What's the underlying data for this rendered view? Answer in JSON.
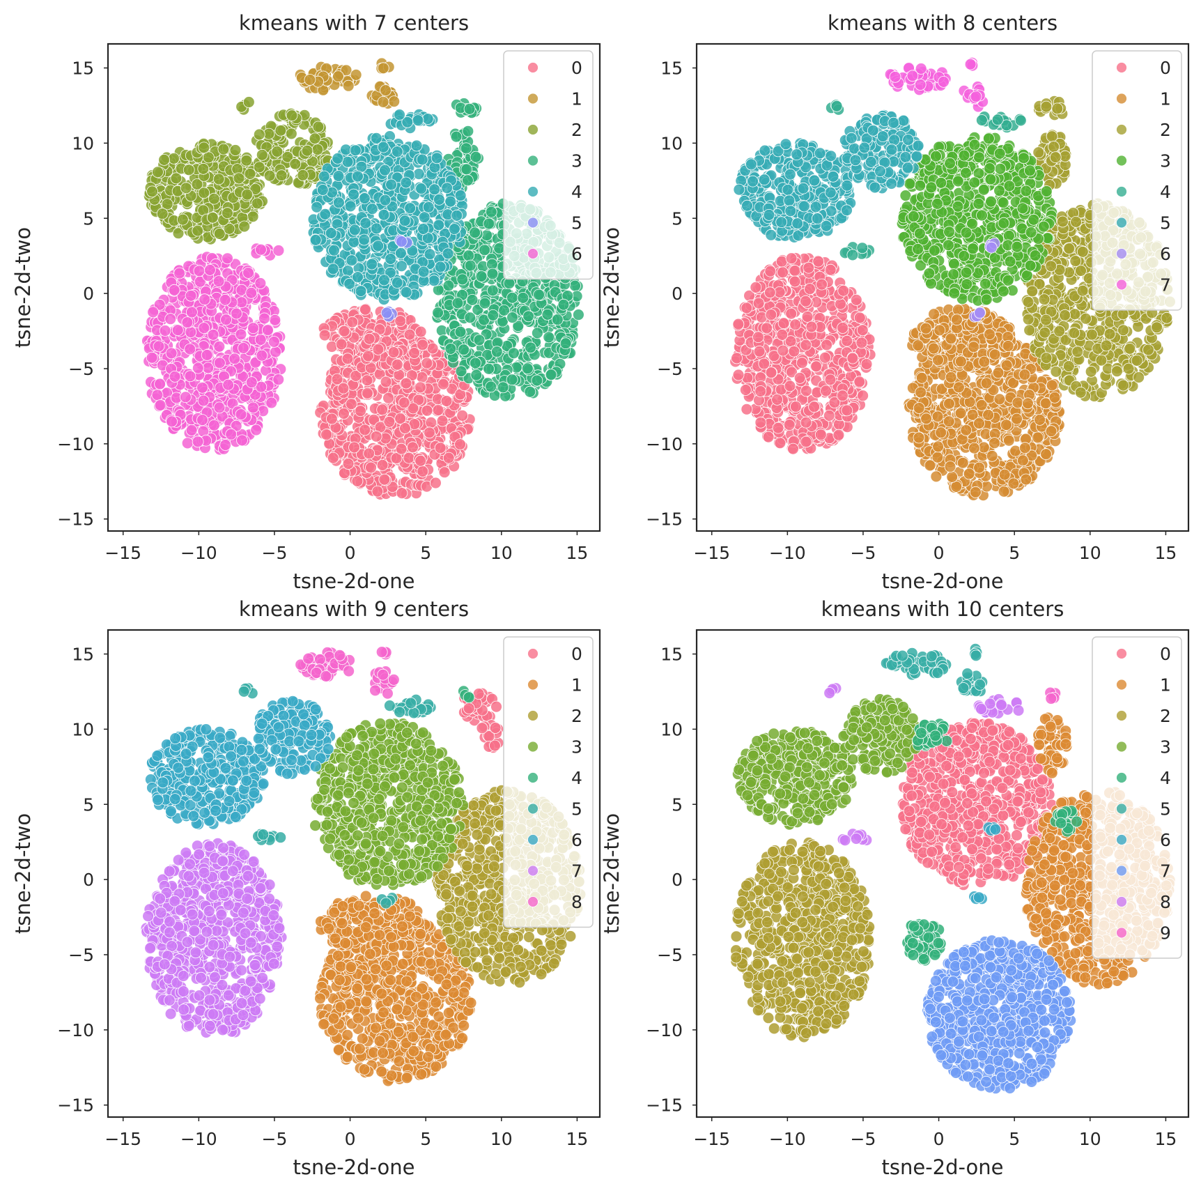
{
  "chart_data": [
    {
      "type": "scatter",
      "title": "kmeans with 7 centers",
      "xlabel": "tsne-2d-one",
      "ylabel": "tsne-2d-two",
      "xlim": [
        -16,
        16.5
      ],
      "ylim": [
        -15.8,
        16.6
      ],
      "xticks": [
        -15,
        -10,
        -5,
        0,
        5,
        10,
        15
      ],
      "yticks": [
        -15,
        -10,
        -5,
        0,
        5,
        10,
        15
      ],
      "xtick_labels": [
        "−15",
        "−10",
        "−5",
        "0",
        "5",
        "10",
        "15"
      ],
      "ytick_labels": [
        "−15",
        "−10",
        "−5",
        "0",
        "5",
        "10",
        "15"
      ],
      "legend": {
        "placement": "upper right",
        "entries": [
          "0",
          "1",
          "2",
          "3",
          "4",
          "5",
          "6"
        ]
      },
      "colors": [
        "#f77189",
        "#c39532",
        "#88a331",
        "#33b07a",
        "#35abb3",
        "#8b8ff5",
        "#f563d3"
      ],
      "series": [
        {
          "name": "0",
          "color": "#f77189",
          "cluster_regions": [
            {
              "cx": 3,
              "cy": -8,
              "rx": 5,
              "ry": 5.5
            },
            {
              "cx": 1.5,
              "cy": -3,
              "rx": 3.5,
              "ry": 2
            }
          ]
        },
        {
          "name": "1",
          "color": "#c39532",
          "cluster_regions": [
            {
              "cx": -1.5,
              "cy": 14.3,
              "rx": 2,
              "ry": 0.8
            },
            {
              "cx": 2.2,
              "cy": 13.1,
              "rx": 0.8,
              "ry": 0.8
            },
            {
              "cx": 2.3,
              "cy": 15.1,
              "rx": 0.3,
              "ry": 0.3
            }
          ]
        },
        {
          "name": "2",
          "color": "#88a331",
          "cluster_regions": [
            {
              "cx": -9.5,
              "cy": 6.8,
              "rx": 3.8,
              "ry": 3.2
            },
            {
              "cx": -3.8,
              "cy": 9.5,
              "rx": 2.5,
              "ry": 2.5
            },
            {
              "cx": -6.8,
              "cy": 12.5,
              "rx": 0.5,
              "ry": 0.3
            }
          ]
        },
        {
          "name": "3",
          "color": "#33b07a",
          "cluster_regions": [
            {
              "cx": 10.5,
              "cy": -0.5,
              "rx": 4.8,
              "ry": 6.5
            },
            {
              "cx": 7.5,
              "cy": 9,
              "rx": 1,
              "ry": 2
            },
            {
              "cx": 7.5,
              "cy": 12.3,
              "rx": 1,
              "ry": 0.5
            }
          ]
        },
        {
          "name": "4",
          "color": "#35abb3",
          "cluster_regions": [
            {
              "cx": 2.5,
              "cy": 5,
              "rx": 5,
              "ry": 5.5
            },
            {
              "cx": 4,
              "cy": 11.5,
              "rx": 1.5,
              "ry": 0.5
            }
          ]
        },
        {
          "name": "5",
          "color": "#8b8ff5",
          "cluster_regions": [
            {
              "cx": 2.5,
              "cy": -1.3,
              "rx": 0.4,
              "ry": 0.3
            },
            {
              "cx": 3.5,
              "cy": 3.3,
              "rx": 0.3,
              "ry": 0.3
            }
          ]
        },
        {
          "name": "6",
          "color": "#f563d3",
          "cluster_regions": [
            {
              "cx": -9,
              "cy": -4,
              "rx": 4.5,
              "ry": 6.5
            },
            {
              "cx": -5.5,
              "cy": 2.8,
              "rx": 1,
              "ry": 0.3
            }
          ]
        }
      ]
    },
    {
      "type": "scatter",
      "title": "kmeans with 8 centers",
      "xlabel": "tsne-2d-one",
      "ylabel": "tsne-2d-two",
      "xlim": [
        -16,
        16.5
      ],
      "ylim": [
        -15.8,
        16.6
      ],
      "xticks": [
        -15,
        -10,
        -5,
        0,
        5,
        10,
        15
      ],
      "yticks": [
        -15,
        -10,
        -5,
        0,
        5,
        10,
        15
      ],
      "xtick_labels": [
        "−15",
        "−10",
        "−5",
        "0",
        "5",
        "10",
        "15"
      ],
      "ytick_labels": [
        "−15",
        "−10",
        "−5",
        "0",
        "5",
        "10",
        "15"
      ],
      "legend": {
        "placement": "upper right",
        "entries": [
          "0",
          "1",
          "2",
          "3",
          "4",
          "5",
          "6",
          "7"
        ]
      },
      "colors": [
        "#f77189",
        "#d58c32",
        "#a4a031",
        "#50b131",
        "#34ae91",
        "#37abb5",
        "#a48cf4",
        "#f561dd"
      ],
      "series": [
        {
          "name": "0",
          "color": "#f77189",
          "cluster_regions": [
            {
              "cx": -9,
              "cy": -4,
              "rx": 4.5,
              "ry": 6.5
            }
          ]
        },
        {
          "name": "1",
          "color": "#d58c32",
          "cluster_regions": [
            {
              "cx": 3,
              "cy": -8,
              "rx": 5,
              "ry": 5.5
            },
            {
              "cx": 1.5,
              "cy": -3,
              "rx": 3.5,
              "ry": 2
            }
          ]
        },
        {
          "name": "2",
          "color": "#a4a031",
          "cluster_regions": [
            {
              "cx": 10.5,
              "cy": -0.5,
              "rx": 4.8,
              "ry": 6.5
            },
            {
              "cx": 7.5,
              "cy": 9,
              "rx": 1,
              "ry": 2
            },
            {
              "cx": 7.5,
              "cy": 12.3,
              "rx": 1,
              "ry": 0.5
            }
          ]
        },
        {
          "name": "3",
          "color": "#50b131",
          "cluster_regions": [
            {
              "cx": 2.5,
              "cy": 5,
              "rx": 5,
              "ry": 5.5
            }
          ]
        },
        {
          "name": "4",
          "color": "#34ae91",
          "cluster_regions": [
            {
              "cx": 4,
              "cy": 11.5,
              "rx": 1.5,
              "ry": 0.5
            },
            {
              "cx": -6.8,
              "cy": 12.5,
              "rx": 0.5,
              "ry": 0.3
            },
            {
              "cx": -5.5,
              "cy": 2.8,
              "rx": 1,
              "ry": 0.3
            }
          ]
        },
        {
          "name": "5",
          "color": "#37abb5",
          "cluster_regions": [
            {
              "cx": -9.5,
              "cy": 6.8,
              "rx": 3.8,
              "ry": 3.2
            },
            {
              "cx": -3.8,
              "cy": 9.5,
              "rx": 2.5,
              "ry": 2.5
            }
          ]
        },
        {
          "name": "6",
          "color": "#a48cf4",
          "cluster_regions": [
            {
              "cx": 2.5,
              "cy": -1.3,
              "rx": 0.4,
              "ry": 0.3
            },
            {
              "cx": 3.5,
              "cy": 3.3,
              "rx": 0.3,
              "ry": 0.3
            }
          ]
        },
        {
          "name": "7",
          "color": "#f561dd",
          "cluster_regions": [
            {
              "cx": -1.5,
              "cy": 14.3,
              "rx": 2,
              "ry": 0.8
            },
            {
              "cx": 2.2,
              "cy": 13.1,
              "rx": 0.8,
              "ry": 0.8
            },
            {
              "cx": 2.3,
              "cy": 15.1,
              "rx": 0.3,
              "ry": 0.3
            }
          ]
        }
      ]
    },
    {
      "type": "scatter",
      "title": "kmeans with 9 centers",
      "xlabel": "tsne-2d-one",
      "ylabel": "tsne-2d-two",
      "xlim": [
        -16,
        16.5
      ],
      "ylim": [
        -15.8,
        16.6
      ],
      "xticks": [
        -15,
        -10,
        -5,
        0,
        5,
        10,
        15
      ],
      "yticks": [
        -15,
        -10,
        -5,
        0,
        5,
        10,
        15
      ],
      "xtick_labels": [
        "−15",
        "−10",
        "−5",
        "0",
        "5",
        "10",
        "15"
      ],
      "ytick_labels": [
        "−15",
        "−10",
        "−5",
        "0",
        "5",
        "10",
        "15"
      ],
      "legend": {
        "placement": "upper right",
        "entries": [
          "0",
          "1",
          "2",
          "3",
          "4",
          "5",
          "6",
          "7",
          "8"
        ]
      },
      "colors": [
        "#f77189",
        "#dc8932",
        "#ae9d31",
        "#77ab31",
        "#33b07a",
        "#36ada4",
        "#38a9c5",
        "#cc7af4",
        "#f565cc"
      ],
      "series": [
        {
          "name": "0",
          "color": "#f77189",
          "cluster_regions": [
            {
              "cx": 8.5,
              "cy": 11.5,
              "rx": 1.2,
              "ry": 1
            },
            {
              "cx": 9.2,
              "cy": 9.5,
              "rx": 0.8,
              "ry": 0.8
            }
          ]
        },
        {
          "name": "1",
          "color": "#dc8932",
          "cluster_regions": [
            {
              "cx": 3,
              "cy": -8,
              "rx": 5,
              "ry": 5.5
            },
            {
              "cx": 1.5,
              "cy": -3,
              "rx": 3.5,
              "ry": 2
            }
          ]
        },
        {
          "name": "2",
          "color": "#ae9d31",
          "cluster_regions": [
            {
              "cx": 10.5,
              "cy": -0.5,
              "rx": 4.8,
              "ry": 6.5
            }
          ]
        },
        {
          "name": "3",
          "color": "#77ab31",
          "cluster_regions": [
            {
              "cx": 2.5,
              "cy": 5,
              "rx": 5,
              "ry": 5.5
            }
          ]
        },
        {
          "name": "4",
          "color": "#33b07a",
          "cluster_regions": [
            {
              "cx": 7.5,
              "cy": 12.3,
              "rx": 0.5,
              "ry": 0.3
            }
          ]
        },
        {
          "name": "5",
          "color": "#36ada4",
          "cluster_regions": [
            {
              "cx": 4,
              "cy": 11.5,
              "rx": 1.5,
              "ry": 0.5
            },
            {
              "cx": -6.8,
              "cy": 12.5,
              "rx": 0.5,
              "ry": 0.3
            },
            {
              "cx": -5.5,
              "cy": 2.8,
              "rx": 1,
              "ry": 0.3
            },
            {
              "cx": 2.5,
              "cy": -1.3,
              "rx": 0.4,
              "ry": 0.3
            }
          ]
        },
        {
          "name": "6",
          "color": "#38a9c5",
          "cluster_regions": [
            {
              "cx": -9.5,
              "cy": 6.8,
              "rx": 3.8,
              "ry": 3.2
            },
            {
              "cx": -3.8,
              "cy": 9.5,
              "rx": 2.5,
              "ry": 2.5
            }
          ]
        },
        {
          "name": "7",
          "color": "#cc7af4",
          "cluster_regions": [
            {
              "cx": -9,
              "cy": -4,
              "rx": 4.5,
              "ry": 6.5
            }
          ]
        },
        {
          "name": "8",
          "color": "#f565cc",
          "cluster_regions": [
            {
              "cx": -1.5,
              "cy": 14.3,
              "rx": 2,
              "ry": 0.8
            },
            {
              "cx": 2.2,
              "cy": 13.1,
              "rx": 0.8,
              "ry": 0.8
            },
            {
              "cx": 2.3,
              "cy": 15.1,
              "rx": 0.3,
              "ry": 0.3
            }
          ]
        }
      ]
    },
    {
      "type": "scatter",
      "title": "kmeans with 10 centers",
      "xlabel": "tsne-2d-one",
      "ylabel": "tsne-2d-two",
      "xlim": [
        -16,
        16.5
      ],
      "ylim": [
        -15.8,
        16.6
      ],
      "xticks": [
        -15,
        -10,
        -5,
        0,
        5,
        10,
        15
      ],
      "yticks": [
        -15,
        -10,
        -5,
        0,
        5,
        10,
        15
      ],
      "xtick_labels": [
        "−15",
        "−10",
        "−5",
        "0",
        "5",
        "10",
        "15"
      ],
      "ytick_labels": [
        "−15",
        "−10",
        "−5",
        "0",
        "5",
        "10",
        "15"
      ],
      "legend": {
        "placement": "upper right",
        "entries": [
          "0",
          "1",
          "2",
          "3",
          "4",
          "5",
          "6",
          "7",
          "8",
          "9"
        ]
      },
      "colors": [
        "#f77189",
        "#dc8932",
        "#ae9d31",
        "#77ab31",
        "#33b07a",
        "#36ada4",
        "#38a9c5",
        "#6e9bf4",
        "#cc7af4",
        "#f565cc"
      ],
      "series": [
        {
          "name": "0",
          "color": "#f77189",
          "cluster_regions": [
            {
              "cx": 2.5,
              "cy": 5,
              "rx": 5,
              "ry": 5.5
            }
          ]
        },
        {
          "name": "1",
          "color": "#dc8932",
          "cluster_regions": [
            {
              "cx": 10.5,
              "cy": -0.5,
              "rx": 4.8,
              "ry": 6.5
            },
            {
              "cx": 7.5,
              "cy": 9,
              "rx": 1,
              "ry": 2
            }
          ]
        },
        {
          "name": "2",
          "color": "#ae9d31",
          "cluster_regions": [
            {
              "cx": -9,
              "cy": -4,
              "rx": 4.5,
              "ry": 6.5
            }
          ]
        },
        {
          "name": "3",
          "color": "#77ab31",
          "cluster_regions": [
            {
              "cx": -9.5,
              "cy": 6.8,
              "rx": 3.8,
              "ry": 3.2
            },
            {
              "cx": -3.8,
              "cy": 9.5,
              "rx": 2.5,
              "ry": 2.5
            }
          ]
        },
        {
          "name": "4",
          "color": "#33b07a",
          "cluster_regions": [
            {
              "cx": -1,
              "cy": -4,
              "rx": 1.2,
              "ry": 1.5
            },
            {
              "cx": 8.5,
              "cy": 4,
              "rx": 0.8,
              "ry": 0.8
            },
            {
              "cx": -0.5,
              "cy": 9.5,
              "rx": 1.2,
              "ry": 1
            }
          ]
        },
        {
          "name": "5",
          "color": "#36ada4",
          "cluster_regions": [
            {
              "cx": -1.5,
              "cy": 14.3,
              "rx": 2,
              "ry": 0.8
            },
            {
              "cx": 2.2,
              "cy": 13.1,
              "rx": 0.8,
              "ry": 0.8
            },
            {
              "cx": 2.3,
              "cy": 15.1,
              "rx": 0.3,
              "ry": 0.3
            }
          ]
        },
        {
          "name": "6",
          "color": "#38a9c5",
          "cluster_regions": [
            {
              "cx": 2.5,
              "cy": -1.3,
              "rx": 0.4,
              "ry": 0.3
            },
            {
              "cx": 3.5,
              "cy": 3.3,
              "rx": 0.3,
              "ry": 0.3
            }
          ]
        },
        {
          "name": "7",
          "color": "#6e9bf4",
          "cluster_regions": [
            {
              "cx": 4,
              "cy": -9,
              "rx": 4.8,
              "ry": 5
            }
          ]
        },
        {
          "name": "8",
          "color": "#cc7af4",
          "cluster_regions": [
            {
              "cx": 4,
              "cy": 11.5,
              "rx": 1.5,
              "ry": 0.5
            },
            {
              "cx": -6.8,
              "cy": 12.5,
              "rx": 0.5,
              "ry": 0.3
            },
            {
              "cx": -5.5,
              "cy": 2.8,
              "rx": 1,
              "ry": 0.3
            }
          ]
        },
        {
          "name": "9",
          "color": "#f565cc",
          "cluster_regions": [
            {
              "cx": 7.5,
              "cy": 12.3,
              "rx": 0.5,
              "ry": 0.3
            }
          ]
        }
      ]
    }
  ]
}
